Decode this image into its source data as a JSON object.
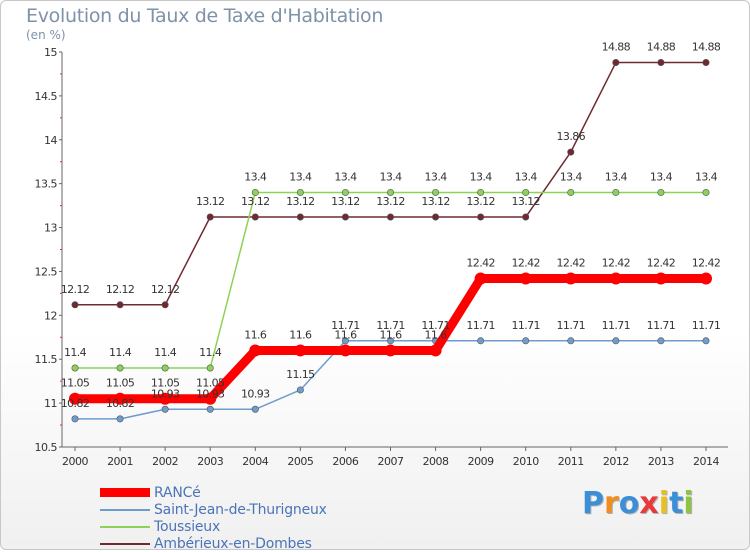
{
  "chart_data": {
    "type": "line",
    "title": "Evolution du Taux de Taxe d'Habitation",
    "subtitle": "(en %)",
    "x": [
      "2000",
      "2001",
      "2002",
      "2003",
      "2004",
      "2005",
      "2006",
      "2007",
      "2008",
      "2009",
      "2010",
      "2011",
      "2012",
      "2013",
      "2014"
    ],
    "ylim": [
      10.5,
      15
    ],
    "yticks": [
      "10.5",
      "11",
      "11.5",
      "12",
      "12.5",
      "13",
      "13.5",
      "14",
      "14.5",
      "15"
    ],
    "grid": false,
    "legend_position": "bottom-left",
    "series": [
      {
        "name": "RANCé",
        "color": "#ff0000",
        "values": [
          11.05,
          11.05,
          11.05,
          11.05,
          11.6,
          11.6,
          11.6,
          11.6,
          11.6,
          12.42,
          12.42,
          12.42,
          12.42,
          12.42,
          12.42
        ],
        "labels": [
          "11.05",
          "11.05",
          "11.05",
          "11.05",
          "11.6",
          "11.6",
          "11.6",
          "11.6",
          "11.6",
          "12.42",
          "12.42",
          "12.42",
          "12.42",
          "12.42",
          "12.42"
        ]
      },
      {
        "name": "Saint-Jean-de-Thurigneux",
        "color": "#6e9ccc",
        "values": [
          10.82,
          10.82,
          10.93,
          10.93,
          10.93,
          11.15,
          11.71,
          11.71,
          11.71,
          11.71,
          11.71,
          11.71,
          11.71,
          11.71,
          11.71
        ],
        "labels": [
          "10.82",
          "10.82",
          "10.93",
          "10.93",
          "10.93",
          "11.15",
          "11.71",
          "11.71",
          "11.71",
          "11.71",
          "11.71",
          "11.71",
          "11.71",
          "11.71",
          "11.71"
        ]
      },
      {
        "name": "Toussieux",
        "color": "#8cd25a",
        "values": [
          11.4,
          11.4,
          11.4,
          11.4,
          13.4,
          13.4,
          13.4,
          13.4,
          13.4,
          13.4,
          13.4,
          13.4,
          13.4,
          13.4,
          13.4
        ],
        "labels": [
          "11.4",
          "11.4",
          "11.4",
          "11.4",
          "13.4",
          "13.4",
          "13.4",
          "13.4",
          "13.4",
          "13.4",
          "13.4",
          "13.4",
          "13.4",
          "13.4",
          "13.4"
        ]
      },
      {
        "name": "Ambérieux-en-Dombes",
        "color": "#6e2a30",
        "values": [
          12.12,
          12.12,
          12.12,
          13.12,
          13.12,
          13.12,
          13.12,
          13.12,
          13.12,
          13.12,
          13.12,
          13.86,
          14.88,
          14.88,
          14.88
        ],
        "labels": [
          "12.12",
          "12.12",
          "12.12",
          "13.12",
          "13.12",
          "13.12",
          "13.12",
          "13.12",
          "13.12",
          "13.12",
          "13.12",
          "13.86",
          "14.88",
          "14.88",
          "14.88"
        ]
      }
    ]
  },
  "brand": {
    "letters": [
      "P",
      "r",
      "o",
      "x",
      "i",
      "t",
      "i"
    ],
    "colors": [
      "#3a8fd8",
      "#f08c20",
      "#3a8fd8",
      "#e83a3a",
      "#e8c020",
      "#3a8fd8",
      "#8cc63e"
    ]
  }
}
